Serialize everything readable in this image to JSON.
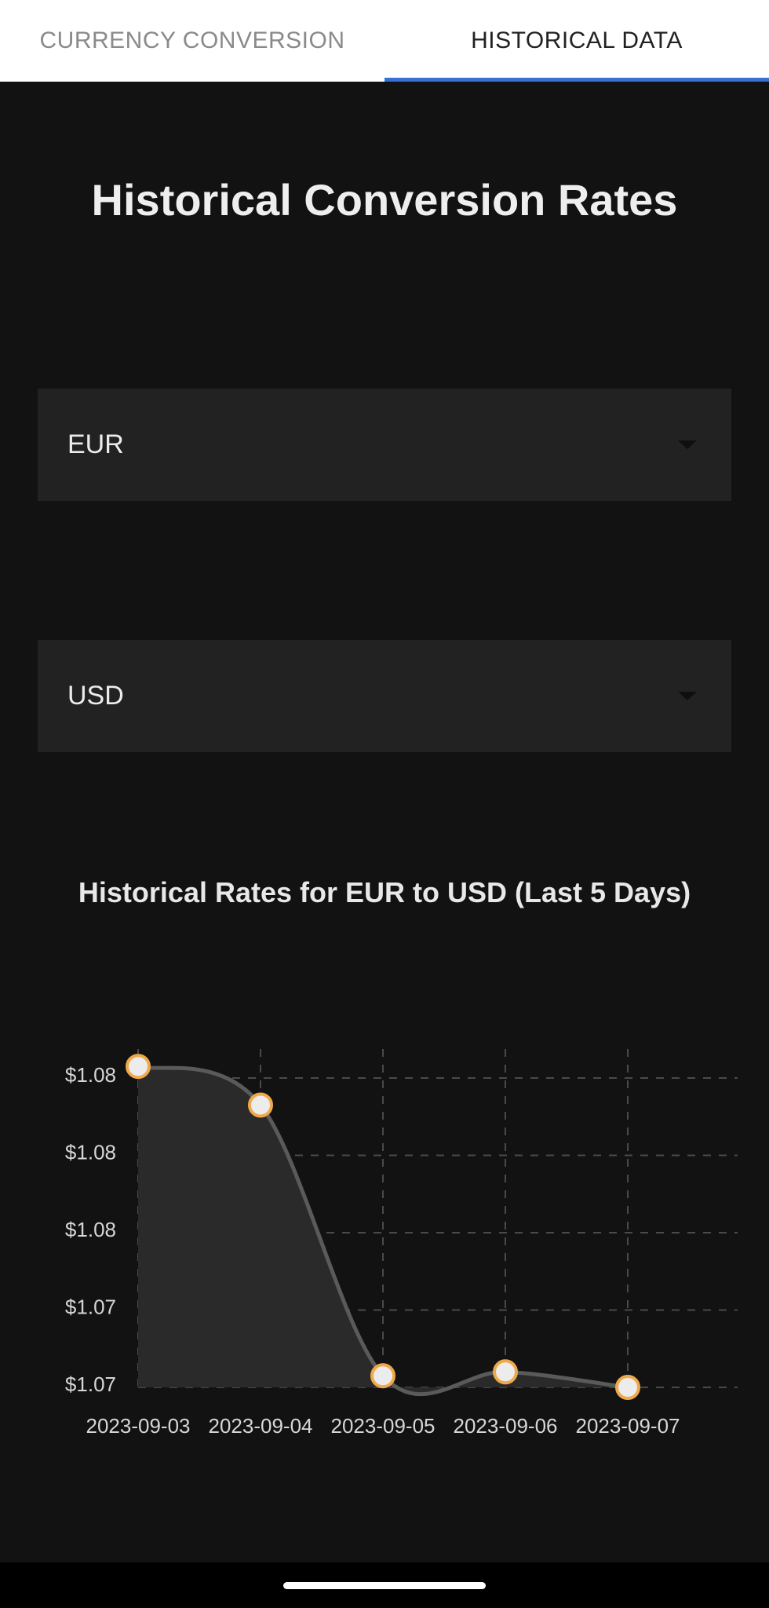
{
  "tabs": [
    {
      "label": "CURRENCY CONVERSION",
      "active": false
    },
    {
      "label": "HISTORICAL DATA",
      "active": true
    }
  ],
  "page_title": "Historical Conversion Rates",
  "from_currency": {
    "value": "EUR"
  },
  "to_currency": {
    "value": "USD"
  },
  "chart_title": "Historical Rates for EUR to USD (Last 5 Days)",
  "colors": {
    "accent": "#3b6fd6",
    "marker": "#f0a94a",
    "line": "#5a5a5a",
    "area": "#2a2a2a"
  },
  "chart_data": {
    "type": "area",
    "title": "Historical Rates for EUR to USD (Last 5 Days)",
    "x": [
      "2023-09-03",
      "2023-09-04",
      "2023-09-05",
      "2023-09-06",
      "2023-09-07"
    ],
    "values": [
      1.0795,
      1.0785,
      1.0715,
      1.0716,
      1.0712
    ],
    "y_ticks": [
      {
        "value": 1.0792,
        "label": "$1.08"
      },
      {
        "value": 1.0772,
        "label": "$1.08"
      },
      {
        "value": 1.0752,
        "label": "$1.08"
      },
      {
        "value": 1.0732,
        "label": "$1.07"
      },
      {
        "value": 1.0712,
        "label": "$1.07"
      }
    ],
    "ylim": [
      1.0712,
      1.0792
    ],
    "grid": true,
    "legend": "none"
  }
}
